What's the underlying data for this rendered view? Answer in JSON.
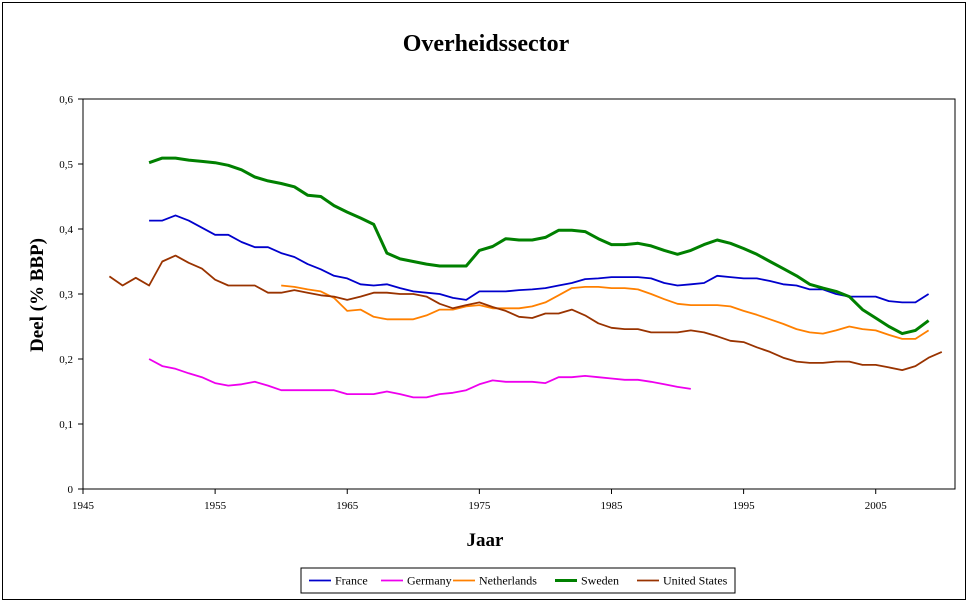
{
  "chart_data": {
    "type": "line",
    "title": "Overheidssector",
    "xlabel": "Jaar",
    "ylabel": "Deel (% BBP)",
    "xlim": [
      1945,
      2011
    ],
    "ylim": [
      0,
      0.6
    ],
    "xticks": [
      1945,
      1955,
      1965,
      1975,
      1985,
      1995,
      2005
    ],
    "xtick_labels": [
      "1945",
      "1955",
      "1965",
      "1975",
      "1985",
      "1995",
      "2005"
    ],
    "yticks": [
      0,
      0.1,
      0.2,
      0.3,
      0.4,
      0.5,
      0.6
    ],
    "ytick_labels": [
      "0",
      "0,1",
      "0,2",
      "0,3",
      "0,4",
      "0,5",
      "0,6"
    ],
    "grid": false,
    "legend_position": "bottom-center",
    "series": [
      {
        "name": "France",
        "color": "#0000cc",
        "x": [
          1950,
          1951,
          1952,
          1953,
          1954,
          1955,
          1956,
          1957,
          1958,
          1959,
          1960,
          1961,
          1962,
          1963,
          1964,
          1965,
          1966,
          1967,
          1968,
          1969,
          1970,
          1971,
          1972,
          1973,
          1974,
          1975,
          1976,
          1977,
          1978,
          1979,
          1980,
          1981,
          1982,
          1983,
          1984,
          1985,
          1986,
          1987,
          1988,
          1989,
          1990,
          1991,
          1992,
          1993,
          1994,
          1995,
          1996,
          1997,
          1998,
          1999,
          2000,
          2001,
          2002,
          2003,
          2004,
          2005,
          2006,
          2007,
          2008,
          2009
        ],
        "y": [
          0.413,
          0.413,
          0.421,
          0.413,
          0.402,
          0.391,
          0.391,
          0.38,
          0.372,
          0.372,
          0.363,
          0.357,
          0.346,
          0.338,
          0.328,
          0.324,
          0.315,
          0.313,
          0.315,
          0.309,
          0.304,
          0.302,
          0.3,
          0.294,
          0.291,
          0.304,
          0.304,
          0.304,
          0.306,
          0.307,
          0.309,
          0.313,
          0.317,
          0.323,
          0.324,
          0.326,
          0.326,
          0.326,
          0.324,
          0.317,
          0.313,
          0.315,
          0.317,
          0.328,
          0.326,
          0.324,
          0.324,
          0.32,
          0.315,
          0.313,
          0.307,
          0.307,
          0.3,
          0.296,
          0.296,
          0.296,
          0.289,
          0.287,
          0.287,
          0.3
        ]
      },
      {
        "name": "Germany",
        "color": "#ee00ee",
        "x": [
          1950,
          1951,
          1952,
          1953,
          1954,
          1955,
          1956,
          1957,
          1958,
          1959,
          1960,
          1961,
          1962,
          1963,
          1964,
          1965,
          1966,
          1967,
          1968,
          1969,
          1970,
          1971,
          1972,
          1973,
          1974,
          1975,
          1976,
          1977,
          1978,
          1979,
          1980,
          1981,
          1982,
          1983,
          1984,
          1985,
          1986,
          1987,
          1988,
          1989,
          1990,
          1991
        ],
        "y": [
          0.2,
          0.189,
          0.185,
          0.178,
          0.172,
          0.163,
          0.159,
          0.161,
          0.165,
          0.159,
          0.152,
          0.152,
          0.152,
          0.152,
          0.152,
          0.146,
          0.146,
          0.146,
          0.15,
          0.146,
          0.141,
          0.141,
          0.146,
          0.148,
          0.152,
          0.161,
          0.167,
          0.165,
          0.165,
          0.165,
          0.163,
          0.172,
          0.172,
          0.174,
          0.172,
          0.17,
          0.168,
          0.168,
          0.165,
          0.161,
          0.157,
          0.154
        ]
      },
      {
        "name": "Netherlands",
        "color": "#ff8000",
        "x": [
          1960,
          1961,
          1962,
          1963,
          1964,
          1965,
          1966,
          1967,
          1968,
          1969,
          1970,
          1971,
          1972,
          1973,
          1974,
          1975,
          1976,
          1977,
          1978,
          1979,
          1980,
          1981,
          1982,
          1983,
          1984,
          1985,
          1986,
          1987,
          1988,
          1989,
          1990,
          1991,
          1992,
          1993,
          1994,
          1995,
          1996,
          1997,
          1998,
          1999,
          2000,
          2001,
          2002,
          2003,
          2004,
          2005,
          2006,
          2007,
          2008,
          2009
        ],
        "y": [
          0.313,
          0.311,
          0.307,
          0.304,
          0.294,
          0.274,
          0.276,
          0.265,
          0.261,
          0.261,
          0.261,
          0.267,
          0.276,
          0.276,
          0.281,
          0.283,
          0.278,
          0.278,
          0.278,
          0.281,
          0.287,
          0.298,
          0.309,
          0.311,
          0.311,
          0.309,
          0.309,
          0.307,
          0.3,
          0.292,
          0.285,
          0.283,
          0.283,
          0.283,
          0.281,
          0.274,
          0.268,
          0.261,
          0.254,
          0.246,
          0.241,
          0.239,
          0.244,
          0.25,
          0.246,
          0.244,
          0.237,
          0.231,
          0.231,
          0.244
        ]
      },
      {
        "name": "Sweden",
        "color": "#008000",
        "x": [
          1950,
          1951,
          1952,
          1953,
          1954,
          1955,
          1956,
          1957,
          1958,
          1959,
          1960,
          1961,
          1962,
          1963,
          1964,
          1965,
          1966,
          1967,
          1968,
          1969,
          1970,
          1971,
          1972,
          1973,
          1974,
          1975,
          1976,
          1977,
          1978,
          1979,
          1980,
          1981,
          1982,
          1983,
          1984,
          1985,
          1986,
          1987,
          1988,
          1989,
          1990,
          1991,
          1992,
          1993,
          1994,
          1995,
          1996,
          1997,
          1998,
          1999,
          2000,
          2001,
          2002,
          2003,
          2004,
          2005,
          2006,
          2007,
          2008,
          2009
        ],
        "y": [
          0.502,
          0.509,
          0.509,
          0.506,
          0.504,
          0.502,
          0.498,
          0.491,
          0.48,
          0.474,
          0.47,
          0.465,
          0.452,
          0.45,
          0.436,
          0.426,
          0.417,
          0.407,
          0.363,
          0.354,
          0.35,
          0.346,
          0.343,
          0.343,
          0.343,
          0.367,
          0.373,
          0.385,
          0.383,
          0.383,
          0.387,
          0.398,
          0.398,
          0.396,
          0.385,
          0.376,
          0.376,
          0.378,
          0.374,
          0.367,
          0.361,
          0.367,
          0.376,
          0.383,
          0.378,
          0.37,
          0.361,
          0.35,
          0.339,
          0.328,
          0.315,
          0.309,
          0.304,
          0.296,
          0.276,
          0.263,
          0.25,
          0.239,
          0.244,
          0.259
        ]
      },
      {
        "name": "United States",
        "color": "#993300",
        "x": [
          1947,
          1948,
          1949,
          1950,
          1951,
          1952,
          1953,
          1954,
          1955,
          1956,
          1957,
          1958,
          1959,
          1960,
          1961,
          1962,
          1963,
          1964,
          1965,
          1966,
          1967,
          1968,
          1969,
          1970,
          1971,
          1972,
          1973,
          1974,
          1975,
          1976,
          1977,
          1978,
          1979,
          1980,
          1981,
          1982,
          1983,
          1984,
          1985,
          1986,
          1987,
          1988,
          1989,
          1990,
          1991,
          1992,
          1993,
          1994,
          1995,
          1996,
          1997,
          1998,
          1999,
          2000,
          2001,
          2002,
          2003,
          2004,
          2005,
          2006,
          2007,
          2008,
          2009,
          2010
        ],
        "y": [
          0.327,
          0.313,
          0.325,
          0.313,
          0.35,
          0.359,
          0.348,
          0.339,
          0.322,
          0.313,
          0.313,
          0.313,
          0.302,
          0.302,
          0.306,
          0.302,
          0.298,
          0.296,
          0.291,
          0.296,
          0.302,
          0.302,
          0.3,
          0.3,
          0.296,
          0.285,
          0.278,
          0.283,
          0.287,
          0.28,
          0.274,
          0.265,
          0.263,
          0.27,
          0.27,
          0.276,
          0.267,
          0.255,
          0.248,
          0.246,
          0.246,
          0.241,
          0.241,
          0.241,
          0.244,
          0.241,
          0.235,
          0.228,
          0.226,
          0.218,
          0.211,
          0.202,
          0.196,
          0.194,
          0.194,
          0.196,
          0.196,
          0.191,
          0.191,
          0.187,
          0.183,
          0.189,
          0.202,
          0.211
        ]
      }
    ]
  }
}
